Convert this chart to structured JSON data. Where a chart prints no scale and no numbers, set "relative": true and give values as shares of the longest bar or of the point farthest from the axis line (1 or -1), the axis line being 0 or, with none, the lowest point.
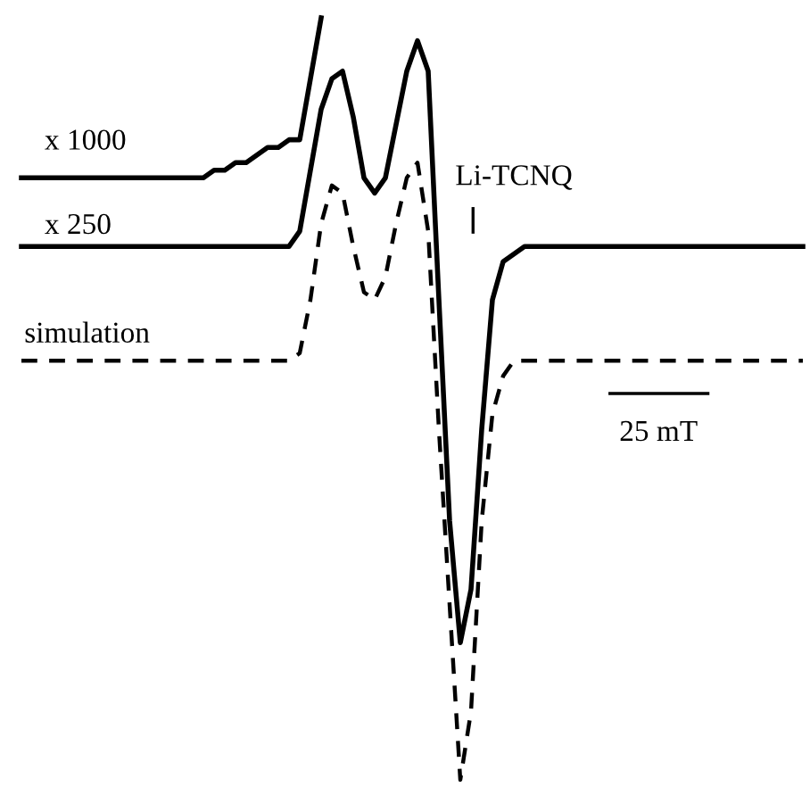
{
  "chart_data": {
    "type": "line",
    "relative": true,
    "categories": [
      null,
      null,
      null,
      null,
      null,
      null,
      null,
      null,
      null,
      null,
      null,
      null,
      null,
      null,
      null,
      null,
      null,
      null,
      null,
      null,
      null,
      null,
      null,
      null,
      null,
      null,
      null,
      null,
      null,
      null,
      null,
      null,
      null,
      null,
      null,
      null,
      null,
      null,
      null,
      null,
      null,
      null,
      null,
      null,
      null,
      null,
      null,
      null,
      null,
      null,
      null,
      null,
      null,
      null,
      null,
      null,
      null,
      null,
      null,
      null,
      null,
      null,
      null,
      null,
      null,
      null,
      null,
      null,
      null,
      null,
      null,
      null,
      null,
      null
    ],
    "series": [
      {
        "name": "x 1000",
        "color": "#000000",
        "line_style": "solid",
        "values": [
          0.79,
          0.79,
          0.79,
          0.79,
          0.79,
          0.79,
          0.79,
          0.79,
          0.79,
          0.79,
          0.79,
          0.79,
          0.79,
          0.79,
          0.79,
          0.79,
          0.79,
          0.79,
          0.8,
          0.8,
          0.81,
          0.81,
          0.82,
          0.83,
          0.83,
          0.84,
          0.84,
          0.92,
          1.0,
          null,
          null,
          null,
          null,
          null,
          null,
          null,
          null,
          null,
          null,
          null,
          null,
          null,
          null,
          null,
          null,
          null,
          null,
          null,
          null,
          null,
          null,
          null,
          null,
          null,
          null,
          null,
          null,
          null,
          null,
          null,
          null,
          null,
          null,
          null,
          null,
          null,
          null,
          null,
          null,
          null,
          null,
          null,
          null,
          null
        ]
      },
      {
        "name": "x 250",
        "color": "#000000",
        "line_style": "solid",
        "values": [
          0.7,
          0.7,
          0.7,
          0.7,
          0.7,
          0.7,
          0.7,
          0.7,
          0.7,
          0.7,
          0.7,
          0.7,
          0.7,
          0.7,
          0.7,
          0.7,
          0.7,
          0.7,
          0.7,
          0.7,
          0.7,
          0.7,
          0.7,
          0.7,
          0.7,
          0.7,
          0.72,
          0.8,
          0.88,
          0.92,
          0.93,
          0.87,
          0.79,
          0.77,
          0.79,
          0.86,
          0.93,
          0.97,
          0.93,
          0.63,
          0.34,
          0.18,
          0.25,
          0.46,
          0.63,
          0.68,
          0.69,
          0.7,
          0.7,
          0.7,
          0.7,
          0.7,
          0.7,
          0.7,
          0.7,
          0.7,
          0.7,
          0.7,
          0.7,
          0.7,
          0.7,
          0.7,
          0.7,
          0.7,
          0.7,
          0.7,
          0.7,
          0.7,
          0.7,
          0.7,
          0.7,
          0.7,
          0.7,
          0.7
        ]
      },
      {
        "name": "simulation",
        "color": "#000000",
        "line_style": "dashed",
        "values": [
          0.55,
          0.55,
          0.55,
          0.55,
          0.55,
          0.55,
          0.55,
          0.55,
          0.55,
          0.55,
          0.55,
          0.55,
          0.55,
          0.55,
          0.55,
          0.55,
          0.55,
          0.55,
          0.55,
          0.55,
          0.55,
          0.55,
          0.55,
          0.55,
          0.55,
          0.55,
          0.56,
          0.63,
          0.73,
          0.78,
          0.77,
          0.7,
          0.64,
          0.63,
          0.66,
          0.73,
          0.79,
          0.81,
          0.72,
          0.46,
          0.23,
          0.0,
          0.09,
          0.34,
          0.48,
          0.53,
          0.55,
          0.55,
          0.55,
          0.55,
          0.55,
          0.55,
          0.55,
          0.55,
          0.55,
          0.55,
          0.55,
          0.55,
          0.55,
          0.55,
          0.55,
          0.55,
          0.55,
          0.55,
          0.55,
          0.55,
          0.55,
          0.55,
          0.55,
          0.55,
          0.55,
          0.55,
          0.55,
          0.55
        ]
      }
    ],
    "annotations": [
      "Li-TCNQ",
      "25 mT"
    ]
  }
}
